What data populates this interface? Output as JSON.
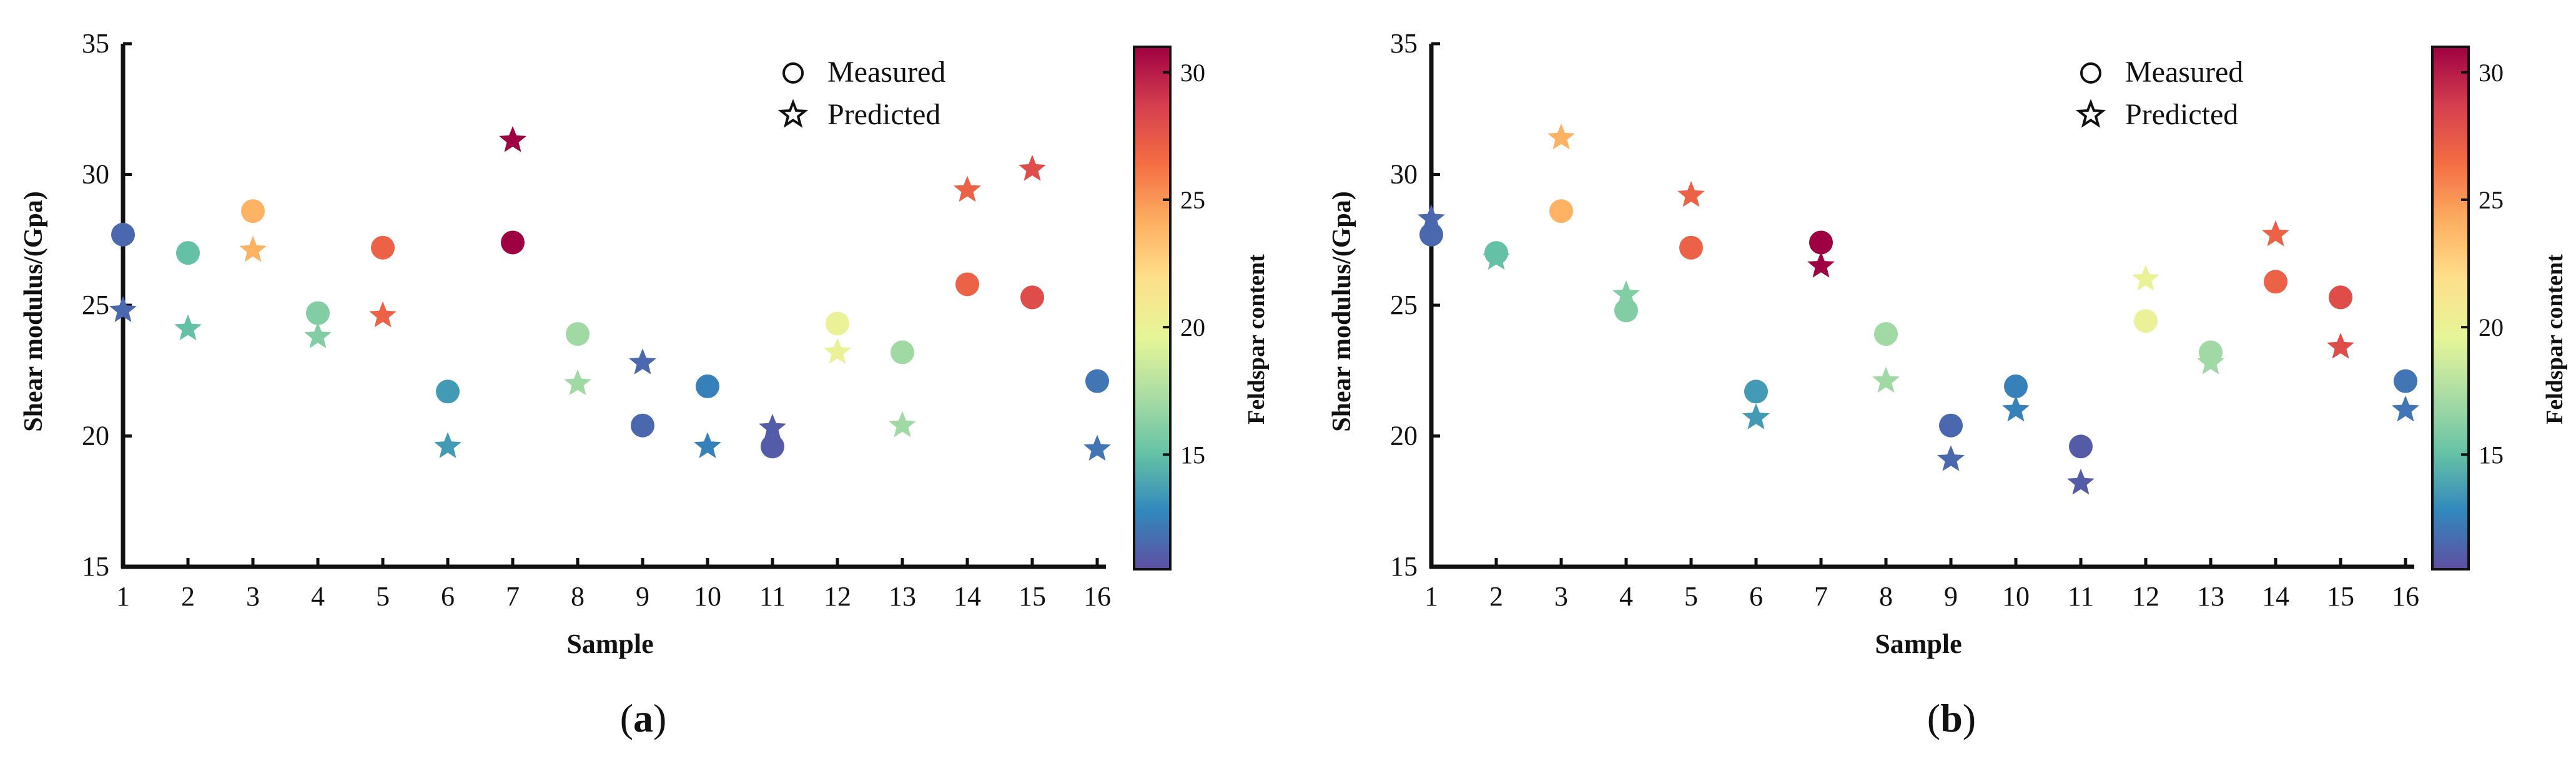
{
  "colormap": {
    "stops": [
      "#5e4fa2",
      "#3288bd",
      "#66c2a5",
      "#abdda4",
      "#e6f598",
      "#fee08b",
      "#fdae61",
      "#f46d43",
      "#d53e4f",
      "#9e0142"
    ],
    "min": 10.5,
    "max": 31
  },
  "chart_data": [
    {
      "type": "scatter",
      "panel_label": "(a)",
      "xlabel": "Sample",
      "ylabel": "Shear modulus/(Gpa)",
      "xticks": [
        "1",
        "2",
        "3",
        "4",
        "5",
        "6",
        "7",
        "8",
        "9",
        "10",
        "11",
        "12",
        "13",
        "14",
        "15",
        "16"
      ],
      "yticks": [
        "15",
        "20",
        "25",
        "30",
        "35"
      ],
      "xlim": [
        1,
        16
      ],
      "ylim": [
        15,
        35
      ],
      "legend": {
        "position": "top-right",
        "entries": [
          "Measured",
          "Predicted"
        ]
      },
      "colorbar": {
        "label": "Feldspar content",
        "ticks": [
          "15",
          "20",
          "25",
          "30"
        ]
      },
      "x": [
        1,
        2,
        3,
        4,
        5,
        6,
        7,
        8,
        9,
        10,
        11,
        12,
        13,
        14,
        15,
        16
      ],
      "feldspar_content": [
        11.5,
        15.0,
        24.0,
        16.0,
        27.0,
        13.5,
        31.0,
        17.0,
        11.5,
        12.5,
        11.0,
        20.0,
        17.0,
        27.0,
        28.0,
        12.0
      ],
      "series": [
        {
          "name": "Measured",
          "marker": "circle",
          "values": [
            27.7,
            27.0,
            28.6,
            24.7,
            27.2,
            21.7,
            27.4,
            23.9,
            20.4,
            21.9,
            19.6,
            24.3,
            23.2,
            25.8,
            25.3,
            22.1
          ]
        },
        {
          "name": "Predicted",
          "marker": "star",
          "values": [
            24.8,
            24.1,
            27.1,
            23.8,
            24.6,
            19.6,
            31.3,
            22.0,
            22.8,
            19.6,
            20.3,
            23.2,
            20.4,
            29.4,
            30.2,
            19.5
          ]
        }
      ]
    },
    {
      "type": "scatter",
      "panel_label": "(b)",
      "xlabel": "Sample",
      "ylabel": "Shear modulus/(Gpa)",
      "xticks": [
        "1",
        "2",
        "3",
        "4",
        "5",
        "6",
        "7",
        "8",
        "9",
        "10",
        "11",
        "12",
        "13",
        "14",
        "15",
        "16"
      ],
      "yticks": [
        "15",
        "20",
        "25",
        "30",
        "35"
      ],
      "xlim": [
        1,
        16
      ],
      "ylim": [
        15,
        35
      ],
      "legend": {
        "position": "top-right",
        "entries": [
          "Measured",
          "Predicted"
        ]
      },
      "colorbar": {
        "label": "Feldspar content",
        "ticks": [
          "15",
          "20",
          "25",
          "30"
        ]
      },
      "x": [
        1,
        2,
        3,
        4,
        5,
        6,
        7,
        8,
        9,
        10,
        11,
        12,
        13,
        14,
        15,
        16
      ],
      "feldspar_content": [
        11.5,
        15.0,
        24.0,
        16.0,
        27.0,
        13.5,
        31.0,
        17.0,
        11.5,
        12.5,
        11.0,
        20.0,
        17.0,
        27.0,
        28.0,
        12.0
      ],
      "series": [
        {
          "name": "Measured",
          "marker": "circle",
          "values": [
            27.7,
            27.0,
            28.6,
            24.8,
            27.2,
            21.7,
            27.4,
            23.9,
            20.4,
            21.9,
            19.6,
            24.4,
            23.2,
            25.9,
            25.3,
            22.1
          ]
        },
        {
          "name": "Predicted",
          "marker": "star",
          "values": [
            28.3,
            26.8,
            31.4,
            25.4,
            29.2,
            20.7,
            26.5,
            22.1,
            19.1,
            21.0,
            18.2,
            26.0,
            22.8,
            27.7,
            23.4,
            21.0
          ]
        }
      ]
    }
  ]
}
